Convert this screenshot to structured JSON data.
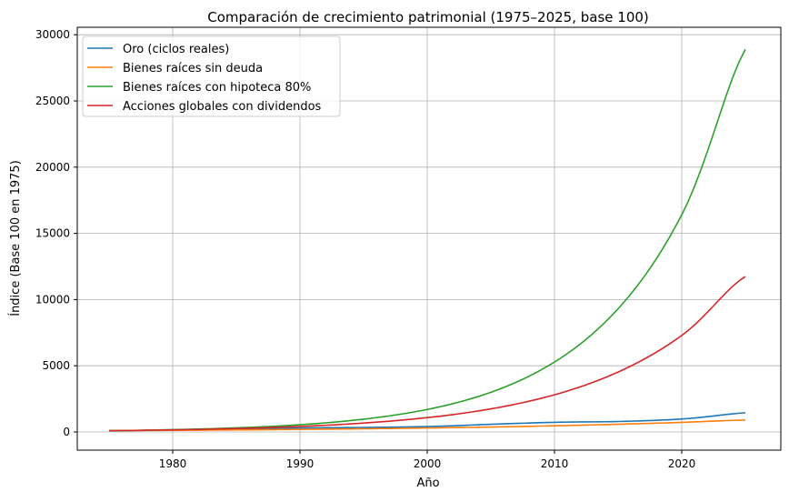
{
  "chart_data": {
    "type": "line",
    "title": "Comparación de crecimiento patrimonial (1975–2025, base 100)",
    "xlabel": "Año",
    "ylabel": "Índice (Base 100 en 1975)",
    "xlim": [
      1972.5,
      2027.5
    ],
    "ylim": [
      -1400,
      30500
    ],
    "xticks": [
      1980,
      1990,
      2000,
      2010,
      2020
    ],
    "yticks": [
      0,
      5000,
      10000,
      15000,
      20000,
      25000,
      30000
    ],
    "grid": true,
    "legend_position": "top-left",
    "x": [
      1975,
      1980,
      1985,
      1990,
      1995,
      2000,
      2005,
      2010,
      2015,
      2020,
      2025
    ],
    "series": [
      {
        "name": "Oro (ciclos reales)",
        "color": "#1f77b4",
        "values": [
          100,
          150,
          210,
          300,
          340,
          410,
          580,
          730,
          790,
          980,
          1450
        ]
      },
      {
        "name": "Bienes raíces sin deuda",
        "color": "#ff7f0e",
        "values": [
          100,
          125,
          155,
          194,
          241,
          301,
          375,
          467,
          582,
          725,
          903
        ]
      },
      {
        "name": "Bienes raíces con hipoteca 80%",
        "color": "#2ca02c",
        "values": [
          100,
          176,
          311,
          547,
          965,
          1700,
          2996,
          5280,
          9305,
          16399,
          28900
        ]
      },
      {
        "name": "Acciones globales con dividendos",
        "color": "#d62728",
        "values": [
          100,
          161,
          259,
          418,
          673,
          1083,
          1745,
          2810,
          4526,
          7289,
          11739
        ]
      }
    ]
  }
}
